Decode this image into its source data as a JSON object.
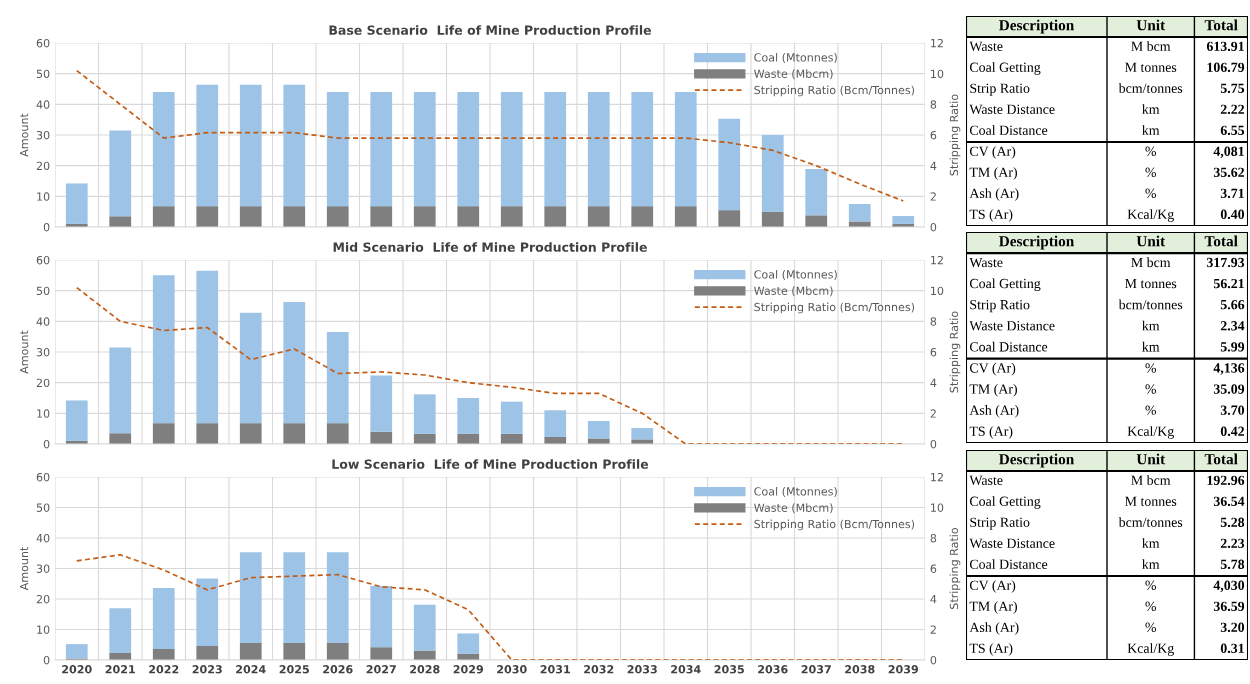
{
  "chart_data": [
    {
      "type": "bar",
      "title": "Base Scenario  Life of Mine Production Profile",
      "ylabel": "Amount",
      "y2label": "Stripping Ratio",
      "stacked": true,
      "legend": "top right",
      "grid": true,
      "tick_labels": "y",
      "categories": [
        "2020",
        "2021",
        "2022",
        "2023",
        "2024",
        "2025",
        "2026",
        "2027",
        "2028",
        "2029",
        "2030",
        "2031",
        "2032",
        "2033",
        "2034",
        "2035",
        "2036",
        "2037",
        "2038",
        "2039"
      ],
      "ylim": [
        0,
        60
      ],
      "yticks": [
        0,
        10,
        20,
        30,
        40,
        50,
        60
      ],
      "y2lim": [
        0,
        12
      ],
      "y2ticks": [
        0,
        2,
        4,
        6,
        8,
        10,
        12
      ],
      "series": [
        {
          "name": "Waste (Mbcm)",
          "color": "#7f7f7f",
          "values": [
            1.0,
            3.5,
            6.8,
            6.8,
            6.8,
            6.8,
            6.8,
            6.8,
            6.8,
            6.8,
            6.8,
            6.8,
            6.8,
            6.8,
            6.8,
            5.5,
            5.0,
            3.8,
            1.8,
            1.0
          ]
        },
        {
          "name": "Coal (Mtonnes)",
          "color": "#9dc3e6",
          "values": [
            13.2,
            28.0,
            37.2,
            39.6,
            39.6,
            39.6,
            37.2,
            37.2,
            37.2,
            37.2,
            37.2,
            37.2,
            37.2,
            37.2,
            37.2,
            29.8,
            25.0,
            15.1,
            5.7,
            2.6
          ]
        },
        {
          "name": "Stripping Ratio (Bcm/Tonnes)",
          "type": "line",
          "axis": "y2",
          "line_style": "dashed",
          "color": "#c55a11",
          "values": [
            10.2,
            8.0,
            5.8,
            6.15,
            6.15,
            6.15,
            5.8,
            5.8,
            5.8,
            5.8,
            5.8,
            5.8,
            5.8,
            5.8,
            5.8,
            5.5,
            5.0,
            4.0,
            2.8,
            1.7
          ]
        }
      ]
    },
    {
      "type": "bar",
      "title": "Mid Scenario  Life of Mine Production Profile",
      "ylabel": "Amount",
      "y2label": "Stripping Ratio",
      "stacked": true,
      "legend": "top right",
      "grid": true,
      "tick_labels": "y",
      "categories": [
        "2020",
        "2021",
        "2022",
        "2023",
        "2024",
        "2025",
        "2026",
        "2027",
        "2028",
        "2029",
        "2030",
        "2031",
        "2032",
        "2033",
        "2034",
        "2035",
        "2036",
        "2037",
        "2038",
        "2039"
      ],
      "ylim": [
        0,
        60
      ],
      "yticks": [
        0,
        10,
        20,
        30,
        40,
        50,
        60
      ],
      "y2lim": [
        0,
        12
      ],
      "y2ticks": [
        0,
        2,
        4,
        6,
        8,
        10,
        12
      ],
      "series": [
        {
          "name": "Waste (Mbcm)",
          "color": "#7f7f7f",
          "values": [
            1.0,
            3.5,
            6.8,
            6.8,
            6.8,
            6.8,
            6.8,
            4.0,
            3.3,
            3.3,
            3.3,
            2.3,
            1.8,
            1.5,
            null,
            null,
            null,
            null,
            null,
            null
          ]
        },
        {
          "name": "Coal (Mtonnes)",
          "color": "#9dc3e6",
          "values": [
            13.2,
            28.0,
            48.2,
            49.7,
            36.0,
            39.5,
            29.7,
            18.3,
            12.9,
            11.7,
            10.5,
            8.7,
            5.7,
            3.7,
            null,
            null,
            null,
            null,
            null,
            null
          ]
        },
        {
          "name": "Stripping Ratio (Bcm/Tonnes)",
          "type": "line",
          "axis": "y2",
          "line_style": "dashed",
          "color": "#c55a11",
          "values": [
            10.2,
            8.0,
            7.4,
            7.6,
            5.5,
            6.2,
            4.6,
            4.7,
            4.5,
            4.0,
            3.7,
            3.3,
            3.3,
            2.0,
            0,
            0,
            0,
            0,
            0,
            0
          ]
        }
      ]
    },
    {
      "type": "bar",
      "title": "Low Scenario  Life of Mine Production Profile",
      "ylabel": "Amount",
      "y2label": "Stripping Ratio",
      "stacked": true,
      "legend": "top right",
      "grid": true,
      "categories": [
        "2020",
        "2021",
        "2022",
        "2023",
        "2024",
        "2025",
        "2026",
        "2027",
        "2028",
        "2029",
        "2030",
        "2031",
        "2032",
        "2033",
        "2034",
        "2035",
        "2036",
        "2037",
        "2038",
        "2039"
      ],
      "ylim": [
        0,
        60
      ],
      "yticks": [
        0,
        10,
        20,
        30,
        40,
        50,
        60
      ],
      "y2lim": [
        0,
        12
      ],
      "y2ticks": [
        0,
        2,
        4,
        6,
        8,
        10,
        12
      ],
      "series": [
        {
          "name": "Waste (Mbcm)",
          "color": "#7f7f7f",
          "values": [
            0.5,
            2.3,
            3.6,
            4.6,
            5.6,
            5.6,
            5.6,
            4.2,
            3.1,
            2.0,
            null,
            null,
            null,
            null,
            null,
            null,
            null,
            null,
            null,
            null
          ]
        },
        {
          "name": "Coal (Mtonnes)",
          "color": "#9dc3e6",
          "values": [
            4.7,
            14.7,
            20.0,
            22.1,
            29.7,
            29.7,
            29.7,
            20.1,
            15.0,
            6.7,
            null,
            null,
            null,
            null,
            null,
            null,
            null,
            null,
            null,
            null
          ]
        },
        {
          "name": "Stripping Ratio (Bcm/Tonnes)",
          "type": "line",
          "axis": "y2",
          "line_style": "dashed",
          "color": "#c55a11",
          "values": [
            6.5,
            6.9,
            5.9,
            4.6,
            5.4,
            5.5,
            5.6,
            4.8,
            4.6,
            3.3,
            0,
            0,
            0,
            0,
            0,
            0,
            0,
            0,
            0,
            0
          ]
        }
      ]
    },
    {
      "type": "other",
      "categories": [
        "Description",
        "Unit",
        "Total"
      ],
      "annotations": [
        "Waste",
        "M bcm",
        "613.91",
        "Coal Getting",
        "M tonnes",
        "106.79",
        "Strip Ratio",
        "bcm/tonnes",
        "5.75",
        "Waste Distance",
        "km",
        "2.22",
        "Coal Distance",
        "km",
        "6.55",
        "CV (Ar)",
        "%",
        "4,081",
        "TM (Ar)",
        "%",
        "35.62",
        "Ash (Ar)",
        "%",
        "3.71",
        "TS (Ar)",
        "Kcal/Kg",
        "0.40"
      ]
    },
    {
      "type": "other",
      "categories": [
        "Description",
        "Unit",
        "Total"
      ],
      "annotations": [
        "Waste",
        "M bcm",
        "317.93",
        "Coal Getting",
        "M tonnes",
        "56.21",
        "Strip Ratio",
        "bcm/tonnes",
        "5.66",
        "Waste Distance",
        "km",
        "2.34",
        "Coal Distance",
        "km",
        "5.99",
        "CV (Ar)",
        "%",
        "4,136",
        "TM (Ar)",
        "%",
        "35.09",
        "Ash (Ar)",
        "%",
        "3.70",
        "TS (Ar)",
        "Kcal/Kg",
        "0.42"
      ]
    },
    {
      "type": "other",
      "categories": [
        "Description",
        "Unit",
        "Total"
      ],
      "annotations": [
        "Waste",
        "M bcm",
        "192.96",
        "Coal Getting",
        "M tonnes",
        "36.54",
        "Strip Ratio",
        "bcm/tonnes",
        "5.28",
        "Waste Distance",
        "km",
        "2.23",
        "Coal Distance",
        "km",
        "5.78",
        "CV (Ar)",
        "%",
        "4,030",
        "TM (Ar)",
        "%",
        "36.59",
        "Ash (Ar)",
        "%",
        "3.20",
        "TS (Ar)",
        "Kcal/Kg",
        "0.31"
      ]
    }
  ]
}
